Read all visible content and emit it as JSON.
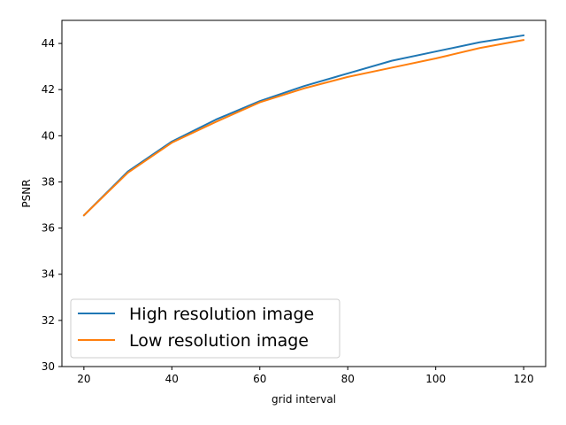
{
  "chart_data": {
    "type": "line",
    "title": "",
    "xlabel": "grid interval",
    "ylabel": "PSNR",
    "xlim": [
      15,
      125
    ],
    "ylim": [
      30,
      45
    ],
    "xticks": [
      20,
      40,
      60,
      80,
      100,
      120
    ],
    "yticks": [
      30,
      32,
      34,
      36,
      38,
      40,
      42,
      44
    ],
    "grid": false,
    "legend_position": "lower-left",
    "x": [
      20,
      30,
      40,
      50,
      60,
      70,
      80,
      90,
      100,
      110,
      120
    ],
    "series": [
      {
        "name": "High resolution image",
        "color": "#1f77b4",
        "values": [
          36.55,
          38.45,
          39.75,
          40.7,
          41.5,
          42.15,
          42.7,
          43.25,
          43.65,
          44.05,
          44.35
        ]
      },
      {
        "name": "Low resolution image",
        "color": "#ff7f0e",
        "values": [
          36.55,
          38.4,
          39.7,
          40.6,
          41.45,
          42.05,
          42.55,
          42.95,
          43.35,
          43.8,
          44.15
        ]
      }
    ]
  }
}
